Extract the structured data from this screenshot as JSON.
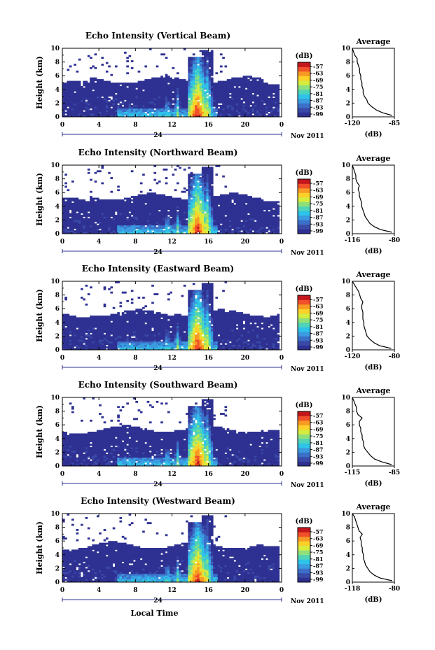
{
  "figure": {
    "xlabel": "Local Time",
    "date_label": "Nov 2011",
    "day_label": "24"
  },
  "colorbar": {
    "unit": "(dB)",
    "ticks": [
      "-57",
      "-63",
      "-69",
      "-75",
      "-81",
      "-87",
      "-93",
      "-99"
    ],
    "colors": [
      "#2e3192",
      "#3a4aa8",
      "#3b6fc8",
      "#3a9be0",
      "#2ec3e8",
      "#4fd4b8",
      "#8fe07a",
      "#d6ec3e",
      "#fbd12a",
      "#f89a24",
      "#f0502a",
      "#c4161c"
    ]
  },
  "chart_data": [
    {
      "type": "heatmap",
      "title": "Echo Intensity (Vertical Beam)",
      "ylabel": "Height (km)",
      "xlim": [
        0,
        24
      ],
      "ylim": [
        0,
        10
      ],
      "xticks": [
        "0",
        "4",
        "8",
        "12",
        "16",
        "20",
        "0"
      ],
      "yticks": [
        "0",
        "2",
        "4",
        "6",
        "8",
        "10"
      ],
      "clim": [
        -99,
        -57
      ],
      "profile": {
        "title": "Average",
        "xlabel": "(dB)",
        "xlim": [
          -120,
          -85
        ],
        "xticks": [
          "-120",
          "-85"
        ],
        "yticks": [
          "0",
          "2",
          "4",
          "6",
          "8",
          "10"
        ],
        "heights": [
          0.2,
          0.6,
          1,
          1.5,
          2,
          2.5,
          3,
          3.5,
          4,
          4.5,
          5,
          5.5,
          6,
          6.5,
          7,
          7.5,
          8,
          8.5,
          9,
          9.5,
          10
        ],
        "values": [
          -87,
          -95,
          -100,
          -104,
          -107,
          -108,
          -110,
          -111,
          -111,
          -112,
          -112,
          -113,
          -113,
          -114,
          -114,
          -115,
          -116,
          -116,
          -118,
          -119,
          -120
        ]
      }
    },
    {
      "type": "heatmap",
      "title": "Echo Intensity (Northward Beam)",
      "ylabel": "Height (km)",
      "xlim": [
        0,
        24
      ],
      "ylim": [
        0,
        10
      ],
      "xticks": [
        "0",
        "4",
        "8",
        "12",
        "16",
        "20",
        "0"
      ],
      "yticks": [
        "0",
        "2",
        "4",
        "6",
        "8",
        "10"
      ],
      "clim": [
        -99,
        -57
      ],
      "profile": {
        "title": "Average",
        "xlabel": "(dB)",
        "xlim": [
          -116,
          -80
        ],
        "xticks": [
          "-116",
          "-80"
        ],
        "yticks": [
          "0",
          "2",
          "4",
          "6",
          "8",
          "10"
        ],
        "heights": [
          0.2,
          0.6,
          1,
          1.5,
          2,
          2.5,
          3,
          3.5,
          4,
          4.5,
          5,
          5.5,
          6,
          6.5,
          7,
          7.5,
          8,
          8.5,
          9,
          9.5,
          10
        ],
        "values": [
          -82,
          -92,
          -97,
          -101,
          -103,
          -105,
          -106,
          -107,
          -108,
          -108,
          -109,
          -110,
          -110,
          -111,
          -110,
          -112,
          -113,
          -113,
          -114,
          -115,
          -116
        ]
      }
    },
    {
      "type": "heatmap",
      "title": "Echo Intensity (Eastward Beam)",
      "ylabel": "Height (km)",
      "xlim": [
        0,
        24
      ],
      "ylim": [
        0,
        10
      ],
      "xticks": [
        "0",
        "4",
        "8",
        "12",
        "16",
        "20",
        "0"
      ],
      "yticks": [
        "0",
        "2",
        "4",
        "6",
        "8",
        "10"
      ],
      "clim": [
        -99,
        -57
      ],
      "profile": {
        "title": "Average",
        "xlabel": "(dB)",
        "xlim": [
          -120,
          -80
        ],
        "xticks": [
          "-120",
          "-80"
        ],
        "yticks": [
          "0",
          "2",
          "4",
          "6",
          "8",
          "10"
        ],
        "heights": [
          0.2,
          0.6,
          1,
          1.5,
          2,
          2.5,
          3,
          3.5,
          4,
          4.5,
          5,
          5.5,
          6,
          6.5,
          7,
          7.5,
          8,
          8.5,
          9,
          9.5,
          10
        ],
        "values": [
          -83,
          -94,
          -99,
          -103,
          -106,
          -107,
          -108,
          -109,
          -109,
          -110,
          -110,
          -110,
          -111,
          -111,
          -110,
          -112,
          -113,
          -114,
          -116,
          -118,
          -120
        ]
      }
    },
    {
      "type": "heatmap",
      "title": "Echo Intensity (Southward Beam)",
      "ylabel": "Height (km)",
      "xlim": [
        0,
        24
      ],
      "ylim": [
        0,
        10
      ],
      "xticks": [
        "0",
        "4",
        "8",
        "12",
        "16",
        "20",
        "0"
      ],
      "yticks": [
        "0",
        "2",
        "4",
        "6",
        "8",
        "10"
      ],
      "clim": [
        -99,
        -57
      ],
      "profile": {
        "title": "Average",
        "xlabel": "(dB)",
        "xlim": [
          -115,
          -85
        ],
        "xticks": [
          "-115",
          "-85"
        ],
        "yticks": [
          "0",
          "2",
          "4",
          "6",
          "8",
          "10"
        ],
        "heights": [
          0.2,
          0.6,
          1,
          1.5,
          2,
          2.5,
          3,
          3.5,
          4,
          4.5,
          5,
          5.5,
          6,
          6.5,
          7,
          7.5,
          8,
          8.5,
          9,
          9.5,
          10
        ],
        "values": [
          -87,
          -94,
          -99,
          -102,
          -104,
          -106,
          -107,
          -107,
          -108,
          -108,
          -109,
          -109,
          -110,
          -110,
          -108,
          -111,
          -112,
          -112,
          -113,
          -114,
          -115
        ]
      }
    },
    {
      "type": "heatmap",
      "title": "Echo Intensity (Westward Beam)",
      "ylabel": "Height (km)",
      "xlim": [
        0,
        24
      ],
      "ylim": [
        0,
        10
      ],
      "xticks": [
        "0",
        "4",
        "8",
        "12",
        "16",
        "20",
        "0"
      ],
      "yticks": [
        "0",
        "2",
        "4",
        "6",
        "8",
        "10"
      ],
      "clim": [
        -99,
        -57
      ],
      "profile": {
        "title": "Average",
        "xlabel": "(dB)",
        "xlim": [
          -118,
          -80
        ],
        "xticks": [
          "-118",
          "-80"
        ],
        "yticks": [
          "0",
          "2",
          "4",
          "6",
          "8",
          "10"
        ],
        "heights": [
          0.2,
          0.6,
          1,
          1.5,
          2,
          2.5,
          3,
          3.5,
          4,
          4.5,
          5,
          5.5,
          6,
          6.5,
          7,
          7.5,
          8,
          8.5,
          9,
          9.5,
          10
        ],
        "values": [
          -82,
          -93,
          -98,
          -102,
          -104,
          -106,
          -107,
          -108,
          -108,
          -109,
          -109,
          -110,
          -110,
          -111,
          -109,
          -112,
          -113,
          -114,
          -115,
          -116,
          -118
        ]
      }
    }
  ]
}
